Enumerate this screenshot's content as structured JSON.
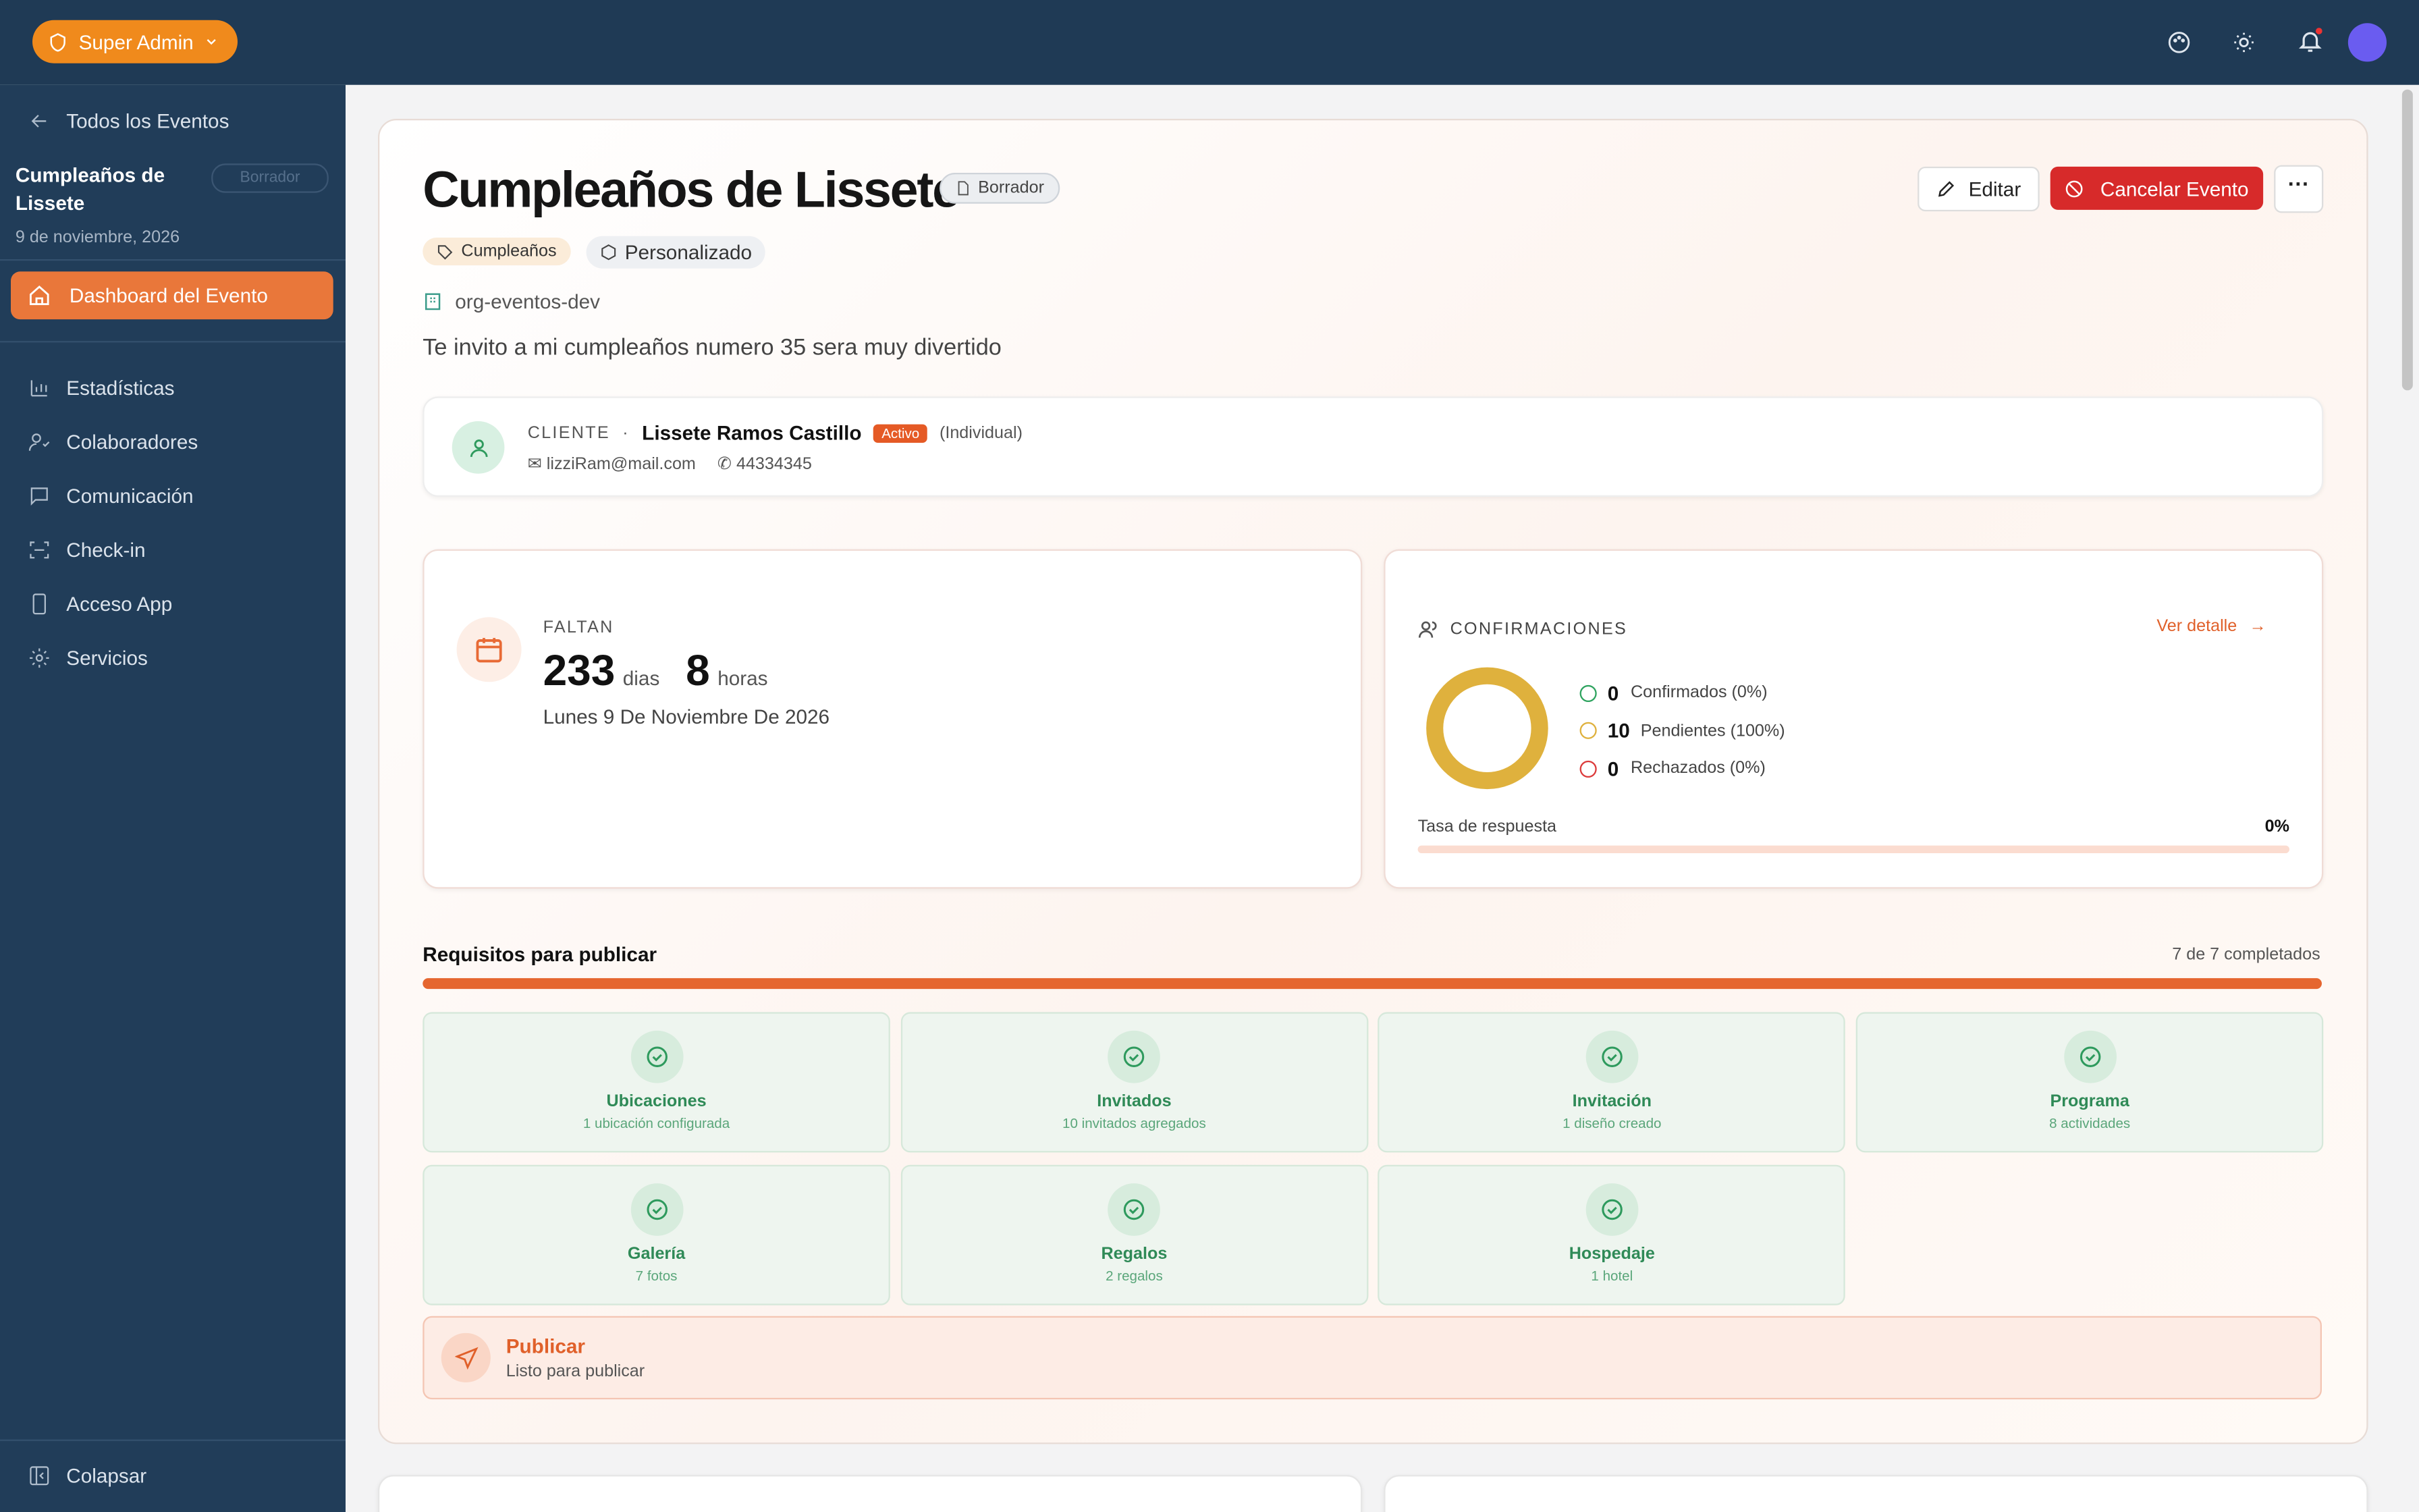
{
  "topbar": {
    "role": "Super Admin"
  },
  "sidebar": {
    "back": "Todos los Eventos",
    "event_name": "Cumpleaños de Lissete",
    "status": "Borrador",
    "date": "9 de noviembre, 2026",
    "active": "Dashboard del Evento",
    "nav": [
      "Estadísticas",
      "Colaboradores",
      "Comunicación",
      "Check-in",
      "Acceso App",
      "Servicios"
    ],
    "collapse": "Colapsar"
  },
  "event": {
    "title": "Cumpleaños de Lissete",
    "status": "Borrador",
    "tags": [
      "Cumpleaños",
      "Personalizado"
    ],
    "org": "org-eventos-dev",
    "description": "Te invito a mi cumpleaños numero 35 sera muy divertido",
    "actions": {
      "edit": "Editar",
      "cancel": "Cancelar Evento"
    }
  },
  "client": {
    "label": "CLIENTE",
    "separator": "·",
    "name": "Lissete Ramos Castillo",
    "status": "Activo",
    "type": "(Individual)",
    "email": "lizziRam@mail.com",
    "phone": "44334345"
  },
  "countdown": {
    "label": "FALTAN",
    "days": 233,
    "days_unit": "dias",
    "hours": 8,
    "hours_unit": "horas",
    "date": "Lunes 9 De Noviembre De 2026"
  },
  "confirmations": {
    "title": "CONFIRMACIONES",
    "link": "Ver detalle",
    "items": [
      {
        "count": 0,
        "label": "Confirmados (0%)",
        "color": "#2ea35f"
      },
      {
        "count": 10,
        "label": "Pendientes (100%)",
        "color": "#dfb13d"
      },
      {
        "count": 0,
        "label": "Rechazados (0%)",
        "color": "#dc3b3b"
      }
    ],
    "rate_label": "Tasa de respuesta",
    "rate": "0%"
  },
  "requirements": {
    "title": "Requisitos para publicar",
    "progress": "7 de 7 completados",
    "items": [
      {
        "name": "Ubicaciones",
        "detail": "1 ubicación configurada"
      },
      {
        "name": "Invitados",
        "detail": "10 invitados agregados"
      },
      {
        "name": "Invitación",
        "detail": "1 diseño creado"
      },
      {
        "name": "Programa",
        "detail": "8 actividades"
      },
      {
        "name": "Galería",
        "detail": "7 fotos"
      },
      {
        "name": "Regalos",
        "detail": "2 regalos"
      },
      {
        "name": "Hospedaje",
        "detail": "1 hotel"
      }
    ]
  },
  "publish": {
    "title": "Publicar",
    "subtitle": "Listo para publicar"
  }
}
